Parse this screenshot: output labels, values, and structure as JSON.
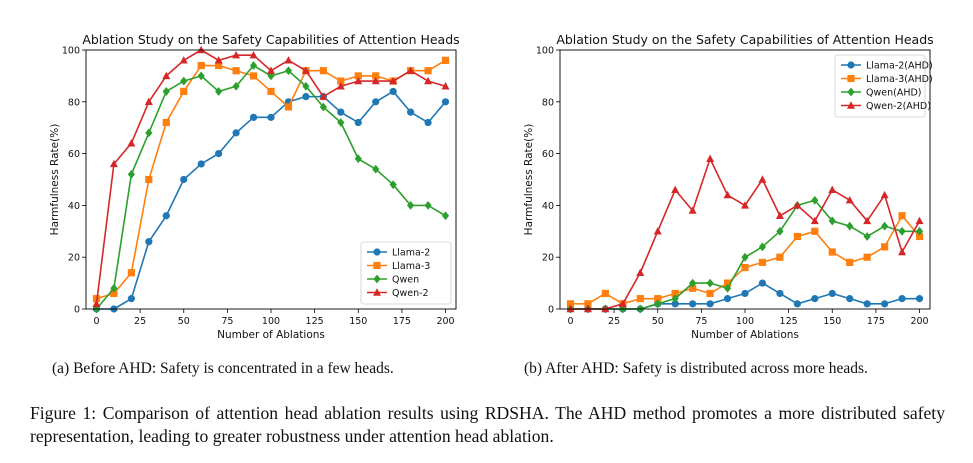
{
  "chart_data": [
    {
      "type": "line",
      "title": "Ablation Study on the Safety Capabilities of Attention Heads",
      "xlabel": "Number of Ablations",
      "ylabel": "Harmfulness Rate(%)",
      "xlim": [
        -6,
        206
      ],
      "ylim": [
        0,
        100
      ],
      "xticks": [
        0,
        25,
        50,
        75,
        100,
        125,
        150,
        175,
        200
      ],
      "yticks": [
        0,
        20,
        40,
        60,
        80,
        100
      ],
      "legend_position": "lower-right",
      "x": [
        0,
        10,
        20,
        30,
        40,
        50,
        60,
        70,
        80,
        90,
        100,
        110,
        120,
        130,
        140,
        150,
        160,
        170,
        180,
        190,
        200
      ],
      "series": [
        {
          "name": "Llama-2",
          "color": "#1f77b4",
          "marker": "circle",
          "values": [
            0,
            0,
            4,
            26,
            36,
            50,
            56,
            60,
            68,
            74,
            74,
            80,
            82,
            82,
            76,
            72,
            80,
            84,
            76,
            72,
            80
          ]
        },
        {
          "name": "Llama-3",
          "color": "#ff7f0e",
          "marker": "square",
          "values": [
            4,
            6,
            14,
            50,
            72,
            84,
            94,
            94,
            92,
            90,
            84,
            78,
            92,
            92,
            88,
            90,
            90,
            88,
            92,
            92,
            96
          ]
        },
        {
          "name": "Qwen",
          "color": "#2ca02c",
          "marker": "diamond",
          "values": [
            0,
            8,
            52,
            68,
            84,
            88,
            90,
            84,
            86,
            94,
            90,
            92,
            86,
            78,
            72,
            58,
            54,
            48,
            40,
            40,
            36
          ]
        },
        {
          "name": "Qwen-2",
          "color": "#d62728",
          "marker": "triangle",
          "values": [
            2,
            56,
            64,
            80,
            90,
            96,
            100,
            96,
            98,
            98,
            92,
            96,
            92,
            82,
            86,
            88,
            88,
            88,
            92,
            88,
            86
          ]
        }
      ]
    },
    {
      "type": "line",
      "title": "Ablation Study on the Safety Capabilities of Attention Heads",
      "xlabel": "Number of Ablations",
      "ylabel": "Harmfulness Rate(%)",
      "xlim": [
        -6,
        206
      ],
      "ylim": [
        0,
        100
      ],
      "xticks": [
        0,
        25,
        50,
        75,
        100,
        125,
        150,
        175,
        200
      ],
      "yticks": [
        0,
        20,
        40,
        60,
        80,
        100
      ],
      "legend_position": "upper-right",
      "x": [
        0,
        10,
        20,
        30,
        40,
        50,
        60,
        70,
        80,
        90,
        100,
        110,
        120,
        130,
        140,
        150,
        160,
        170,
        180,
        190,
        200
      ],
      "series": [
        {
          "name": "Llama-2(AHD)",
          "color": "#1f77b4",
          "marker": "circle",
          "values": [
            0,
            0,
            0,
            0,
            0,
            2,
            2,
            2,
            2,
            4,
            6,
            10,
            6,
            2,
            4,
            6,
            4,
            2,
            2,
            4,
            4
          ]
        },
        {
          "name": "Llama-3(AHD)",
          "color": "#ff7f0e",
          "marker": "square",
          "values": [
            2,
            2,
            6,
            2,
            4,
            4,
            6,
            8,
            6,
            10,
            16,
            18,
            20,
            28,
            30,
            22,
            18,
            20,
            24,
            36,
            28
          ]
        },
        {
          "name": "Qwen(AHD)",
          "color": "#2ca02c",
          "marker": "diamond",
          "values": [
            0,
            0,
            0,
            0,
            0,
            2,
            4,
            10,
            10,
            8,
            20,
            24,
            30,
            40,
            42,
            34,
            32,
            28,
            32,
            30,
            30
          ]
        },
        {
          "name": "Qwen-2(AHD)",
          "color": "#d62728",
          "marker": "triangle",
          "values": [
            0,
            0,
            0,
            2,
            14,
            30,
            46,
            38,
            58,
            44,
            40,
            50,
            36,
            40,
            34,
            46,
            42,
            34,
            44,
            22,
            34
          ]
        }
      ]
    }
  ],
  "captions": {
    "sub_a": "(a) Before AHD: Safety is concentrated in a few heads.",
    "sub_b": "(b) After AHD: Safety is distributed across more heads.",
    "figure": "Figure 1:  Comparison of attention head ablation results using RDSHA. The AHD method promotes a more distributed safety representation, leading to greater robustness under attention head ablation."
  }
}
